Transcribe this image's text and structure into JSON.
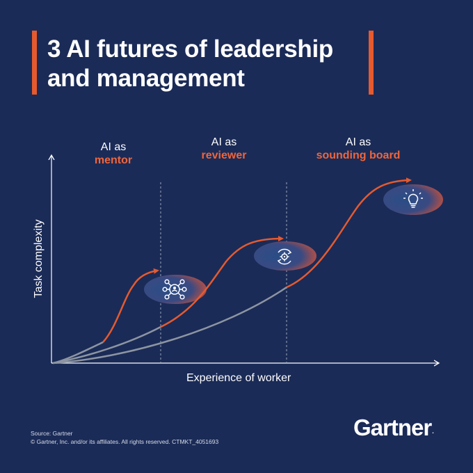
{
  "title": {
    "line1": "3 AI futures of leadership",
    "line2": "and management"
  },
  "phases": [
    {
      "prefix": "AI as",
      "role": "mentor",
      "icon": "network-people-icon"
    },
    {
      "prefix": "AI as",
      "role": "reviewer",
      "icon": "review-cycle-icon"
    },
    {
      "prefix": "AI as",
      "role": "sounding board",
      "icon": "lightbulb-icon"
    }
  ],
  "axes": {
    "y_label": "Task complexity",
    "x_label": "Experience of worker"
  },
  "colors": {
    "background": "#1b2b57",
    "accent": "#e65a2e",
    "curve_gray": "#8d95a2"
  },
  "footer": {
    "source": "Source: Gartner",
    "copyright": "© Gartner, Inc. and/or its affiliates. All rights reserved. CTMKT_4051693"
  },
  "logo": {
    "text": "Gartner",
    "mark": "."
  }
}
